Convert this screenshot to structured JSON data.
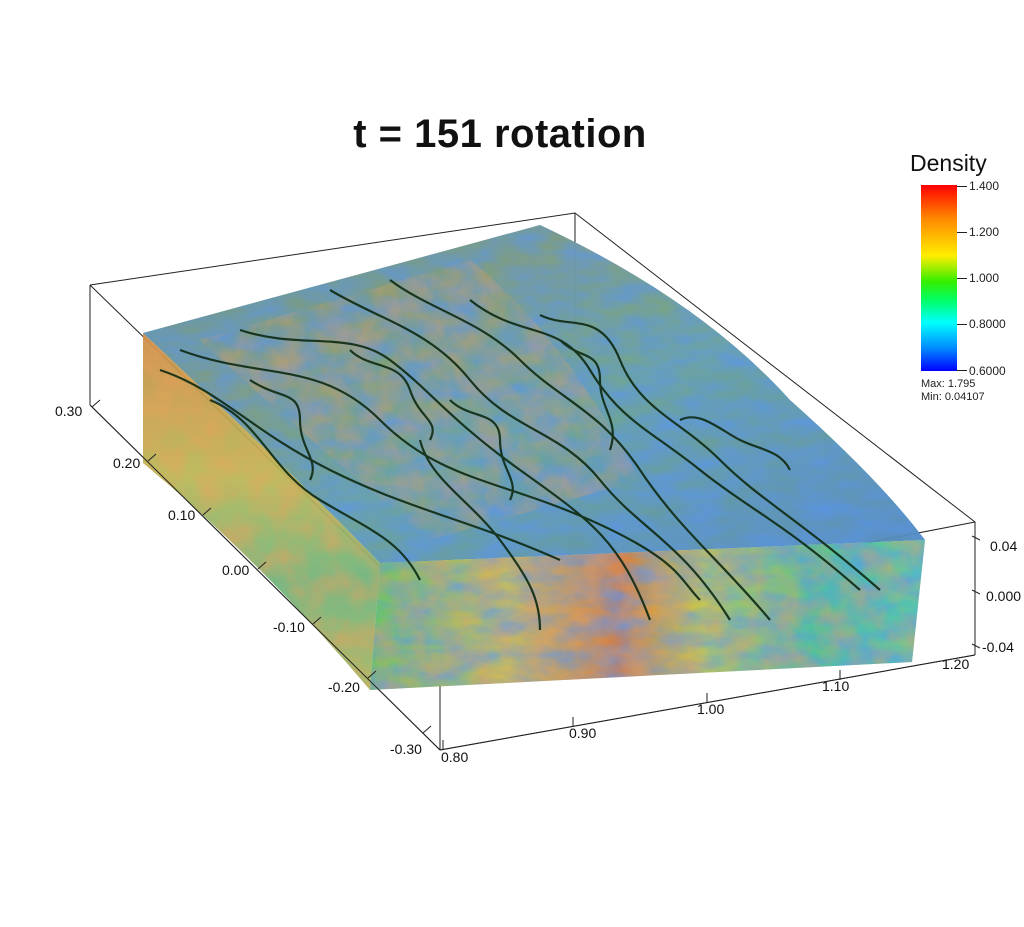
{
  "title": "t = 151 rotation",
  "legend": {
    "title": "Density",
    "ticks": [
      "1.400",
      "1.200",
      "1.000",
      "0.8000",
      "0.6000"
    ],
    "max_label": "Max: 1.795",
    "min_label": "Min: 0.04107"
  },
  "axes": {
    "y_ticks": [
      "0.30",
      "0.20",
      "0.10",
      "0.00",
      "-0.10",
      "-0.20",
      "-0.30"
    ],
    "x_ticks": [
      "0.80",
      "0.90",
      "1.00",
      "1.10",
      "1.20"
    ],
    "z_ticks": [
      "0.04",
      "0.000",
      "-0.04"
    ]
  },
  "colors": {
    "red": "#d83c28",
    "orange": "#e8932a",
    "yellow": "#e0d23a",
    "green": "#5cc86a",
    "teal": "#4fb69a",
    "blue": "#2d45c8",
    "streamline": "#0e2a12"
  }
}
